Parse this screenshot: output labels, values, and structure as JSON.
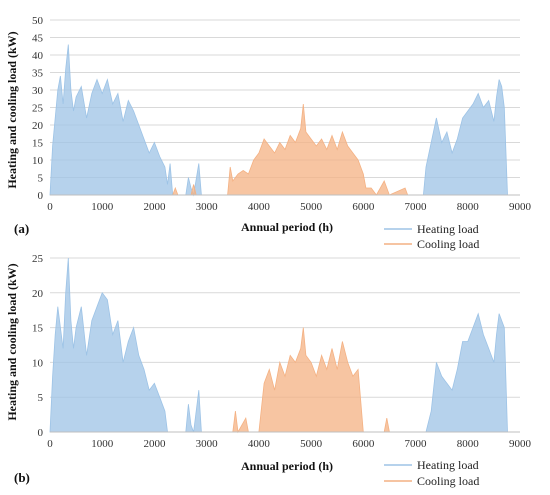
{
  "chart_data": [
    {
      "type": "area",
      "panel_label": "(a)",
      "xlabel": "Annual period (h)",
      "ylabel": "Heating and cooling load (kW)",
      "xlim": [
        0,
        9000
      ],
      "ylim": [
        0,
        50
      ],
      "x_ticks": [
        "0",
        "1000",
        "2000",
        "3000",
        "4000",
        "5000",
        "6000",
        "7000",
        "8000",
        "9000"
      ],
      "y_ticks": [
        "0",
        "5",
        "10",
        "15",
        "20",
        "25",
        "30",
        "35",
        "40",
        "45",
        "50"
      ],
      "grid": true,
      "legend_position": "bottom-right",
      "series": [
        {
          "name": "Heating load",
          "color": "#9DC3E6",
          "points": [
            [
              0,
              0
            ],
            [
              50,
              14
            ],
            [
              100,
              22
            ],
            [
              150,
              30
            ],
            [
              200,
              34
            ],
            [
              250,
              26
            ],
            [
              300,
              36
            ],
            [
              350,
              43
            ],
            [
              400,
              30
            ],
            [
              450,
              24
            ],
            [
              500,
              28
            ],
            [
              600,
              31
            ],
            [
              700,
              22
            ],
            [
              800,
              29
            ],
            [
              900,
              33
            ],
            [
              1000,
              29
            ],
            [
              1100,
              33
            ],
            [
              1200,
              26
            ],
            [
              1300,
              29
            ],
            [
              1400,
              21
            ],
            [
              1500,
              27
            ],
            [
              1600,
              24
            ],
            [
              1700,
              20
            ],
            [
              1800,
              16
            ],
            [
              1900,
              12
            ],
            [
              2000,
              15
            ],
            [
              2100,
              11
            ],
            [
              2200,
              8
            ],
            [
              2250,
              3
            ],
            [
              2300,
              9
            ],
            [
              2350,
              0
            ],
            [
              2600,
              0
            ],
            [
              2650,
              5
            ],
            [
              2700,
              2
            ],
            [
              2750,
              0
            ],
            [
              2850,
              9
            ],
            [
              2900,
              0
            ],
            [
              7150,
              0
            ],
            [
              7200,
              8
            ],
            [
              7300,
              15
            ],
            [
              7400,
              22
            ],
            [
              7500,
              15
            ],
            [
              7600,
              18
            ],
            [
              7700,
              12
            ],
            [
              7800,
              16
            ],
            [
              7900,
              22
            ],
            [
              8000,
              24
            ],
            [
              8100,
              26
            ],
            [
              8200,
              29
            ],
            [
              8300,
              25
            ],
            [
              8400,
              27
            ],
            [
              8500,
              21
            ],
            [
              8550,
              28
            ],
            [
              8600,
              33
            ],
            [
              8650,
              31
            ],
            [
              8700,
              25
            ],
            [
              8760,
              0
            ]
          ]
        },
        {
          "name": "Cooling load",
          "color": "#F4B183",
          "points": [
            [
              2350,
              0
            ],
            [
              2400,
              2
            ],
            [
              2450,
              0
            ],
            [
              2700,
              0
            ],
            [
              2750,
              3
            ],
            [
              2800,
              0
            ],
            [
              3400,
              0
            ],
            [
              3450,
              8
            ],
            [
              3500,
              4
            ],
            [
              3600,
              6
            ],
            [
              3700,
              7
            ],
            [
              3800,
              6
            ],
            [
              3900,
              10
            ],
            [
              4000,
              12
            ],
            [
              4100,
              16
            ],
            [
              4200,
              14
            ],
            [
              4300,
              12
            ],
            [
              4400,
              15
            ],
            [
              4500,
              13
            ],
            [
              4600,
              17
            ],
            [
              4700,
              15
            ],
            [
              4800,
              19
            ],
            [
              4850,
              26
            ],
            [
              4900,
              18
            ],
            [
              5000,
              16
            ],
            [
              5100,
              14
            ],
            [
              5200,
              16
            ],
            [
              5300,
              13
            ],
            [
              5400,
              17
            ],
            [
              5500,
              13
            ],
            [
              5600,
              18
            ],
            [
              5700,
              14
            ],
            [
              5800,
              12
            ],
            [
              5900,
              10
            ],
            [
              6000,
              6
            ],
            [
              6050,
              2
            ],
            [
              6150,
              2
            ],
            [
              6250,
              0
            ],
            [
              6400,
              4
            ],
            [
              6500,
              0
            ],
            [
              6800,
              2
            ],
            [
              6850,
              0
            ]
          ]
        }
      ]
    },
    {
      "type": "area",
      "panel_label": "(b)",
      "xlabel": "Annual period (h)",
      "ylabel": "Heating and cooling load (kW)",
      "xlim": [
        0,
        9000
      ],
      "ylim": [
        0,
        25
      ],
      "x_ticks": [
        "0",
        "1000",
        "2000",
        "3000",
        "4000",
        "5000",
        "6000",
        "7000",
        "8000",
        "9000"
      ],
      "y_ticks": [
        "0",
        "5",
        "10",
        "15",
        "20",
        "25"
      ],
      "grid": true,
      "legend_position": "bottom-right",
      "series": [
        {
          "name": "Heating load",
          "color": "#9DC3E6",
          "points": [
            [
              0,
              0
            ],
            [
              50,
              8
            ],
            [
              100,
              14
            ],
            [
              150,
              18
            ],
            [
              200,
              15
            ],
            [
              250,
              12
            ],
            [
              300,
              20
            ],
            [
              350,
              25
            ],
            [
              400,
              16
            ],
            [
              450,
              12
            ],
            [
              500,
              15
            ],
            [
              600,
              18
            ],
            [
              700,
              11
            ],
            [
              800,
              16
            ],
            [
              900,
              18
            ],
            [
              1000,
              20
            ],
            [
              1100,
              19
            ],
            [
              1200,
              14
            ],
            [
              1300,
              16
            ],
            [
              1400,
              10
            ],
            [
              1500,
              13
            ],
            [
              1600,
              15
            ],
            [
              1700,
              11
            ],
            [
              1800,
              9
            ],
            [
              1900,
              6
            ],
            [
              2000,
              7
            ],
            [
              2100,
              5
            ],
            [
              2200,
              3
            ],
            [
              2250,
              0
            ],
            [
              2600,
              0
            ],
            [
              2650,
              4
            ],
            [
              2700,
              1
            ],
            [
              2750,
              0
            ],
            [
              2850,
              6
            ],
            [
              2900,
              0
            ],
            [
              7200,
              0
            ],
            [
              7300,
              3
            ],
            [
              7400,
              10
            ],
            [
              7500,
              8
            ],
            [
              7600,
              7
            ],
            [
              7700,
              6
            ],
            [
              7800,
              9
            ],
            [
              7900,
              13
            ],
            [
              8000,
              13
            ],
            [
              8100,
              15
            ],
            [
              8200,
              17
            ],
            [
              8300,
              14
            ],
            [
              8400,
              12
            ],
            [
              8500,
              10
            ],
            [
              8550,
              14
            ],
            [
              8600,
              17
            ],
            [
              8650,
              16
            ],
            [
              8700,
              15
            ],
            [
              8760,
              0
            ]
          ]
        },
        {
          "name": "Cooling load",
          "color": "#F4B183",
          "points": [
            [
              3500,
              0
            ],
            [
              3550,
              3
            ],
            [
              3600,
              0
            ],
            [
              3750,
              2
            ],
            [
              3800,
              0
            ],
            [
              4000,
              0
            ],
            [
              4100,
              7
            ],
            [
              4200,
              9
            ],
            [
              4300,
              6
            ],
            [
              4400,
              10
            ],
            [
              4500,
              8
            ],
            [
              4600,
              11
            ],
            [
              4700,
              10
            ],
            [
              4800,
              12
            ],
            [
              4850,
              15
            ],
            [
              4900,
              11
            ],
            [
              5000,
              10
            ],
            [
              5100,
              8
            ],
            [
              5200,
              11
            ],
            [
              5300,
              9
            ],
            [
              5400,
              12
            ],
            [
              5500,
              9
            ],
            [
              5600,
              13
            ],
            [
              5700,
              10
            ],
            [
              5800,
              8
            ],
            [
              5900,
              9
            ],
            [
              6000,
              0
            ],
            [
              6400,
              0
            ],
            [
              6450,
              2
            ],
            [
              6500,
              0
            ]
          ]
        }
      ]
    }
  ]
}
